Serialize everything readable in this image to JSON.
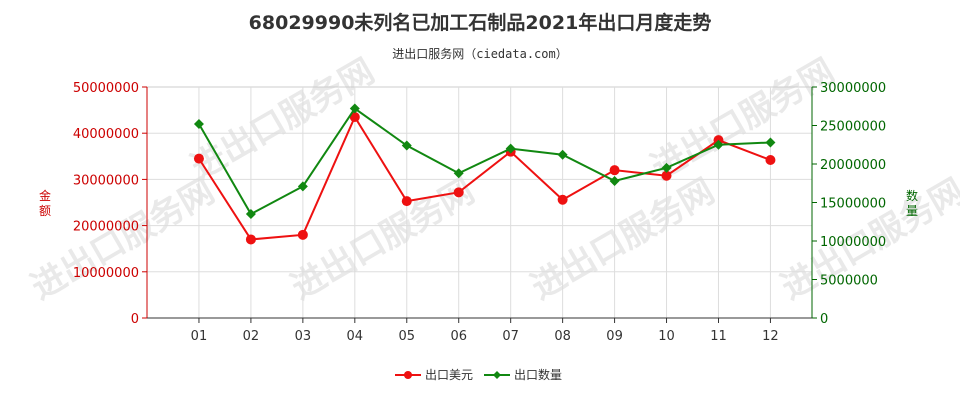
{
  "title": "68029990未列名已加工石制品2021年出口月度走势",
  "subtitle": "进出口服务网（ciedata.com）",
  "watermark": "进出口服务网",
  "chart_data": {
    "type": "line",
    "categories": [
      "01",
      "02",
      "03",
      "04",
      "05",
      "06",
      "07",
      "08",
      "09",
      "10",
      "11",
      "12"
    ],
    "series": [
      {
        "name": "出口美元",
        "axis": "left",
        "color": "#ee1111",
        "values": [
          34500000,
          17000000,
          18000000,
          43500000,
          25300000,
          27200000,
          36000000,
          25600000,
          32000000,
          30800000,
          38500000,
          34200000
        ]
      },
      {
        "name": "出口数量",
        "axis": "right",
        "color": "#118811",
        "values": [
          25200000,
          13500000,
          17100000,
          27200000,
          22400000,
          18800000,
          22000000,
          21200000,
          17800000,
          19500000,
          22500000,
          22800000
        ]
      }
    ],
    "y_left": {
      "label": "金额",
      "range": [
        0,
        50000000
      ],
      "ticks": [
        "0",
        "10000000",
        "20000000",
        "30000000",
        "40000000",
        "50000000"
      ],
      "color": "#cc0000"
    },
    "y_right": {
      "label": "数量",
      "range": [
        0,
        30000000
      ],
      "ticks": [
        "0",
        "5000000",
        "10000000",
        "15000000",
        "20000000",
        "25000000",
        "30000000"
      ],
      "color": "#006600"
    },
    "grid": true,
    "legend": "bottom-center"
  }
}
